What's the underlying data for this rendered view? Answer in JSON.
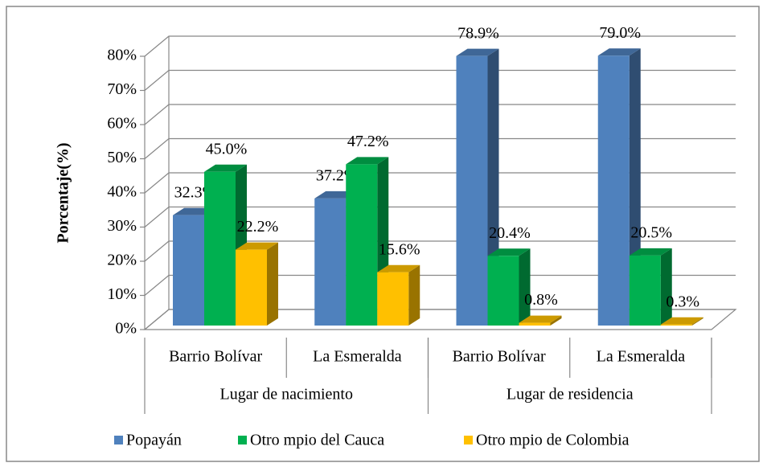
{
  "chart_data": {
    "type": "bar3d",
    "y_label": "Porcentaje(%)",
    "categories": [
      "Barrio Bolívar",
      "La Esmeralda",
      "Barrio Bolívar",
      "La Esmeralda"
    ],
    "groups": [
      {
        "name": "Lugar de nacimiento",
        "span": 2
      },
      {
        "name": "Lugar de residencia",
        "span": 2
      }
    ],
    "series": [
      {
        "name": "Popayán",
        "color": "#4f81bd",
        "values": [
          32.3,
          37.2,
          78.9,
          79.0
        ],
        "value_labels": [
          "32.3%",
          "37.2%",
          "78.9%",
          "79.0%"
        ]
      },
      {
        "name": "Otro mpio del Cauca",
        "color": "#00b050",
        "values": [
          45.0,
          47.2,
          20.4,
          20.5
        ],
        "value_labels": [
          "45.0%",
          "47.2%",
          "20.4%",
          "20.5%"
        ]
      },
      {
        "name": "Otro mpio de Colombia",
        "color": "#ffc000",
        "values": [
          22.2,
          15.6,
          0.8,
          0.3
        ],
        "value_labels": [
          "22.2%",
          "15.6%",
          "0.8%",
          "0.3%"
        ]
      }
    ],
    "ylim": [
      0,
      80
    ],
    "yticks": [
      {
        "value": 0,
        "label": "0%"
      },
      {
        "value": 10,
        "label": "10%"
      },
      {
        "value": 20,
        "label": "20%"
      },
      {
        "value": 30,
        "label": "30%"
      },
      {
        "value": 40,
        "label": "40%"
      },
      {
        "value": 50,
        "label": "50%"
      },
      {
        "value": 60,
        "label": "60%"
      },
      {
        "value": 70,
        "label": "70%"
      },
      {
        "value": 80,
        "label": "80%"
      }
    ],
    "grid": true,
    "legend": "bottom"
  }
}
